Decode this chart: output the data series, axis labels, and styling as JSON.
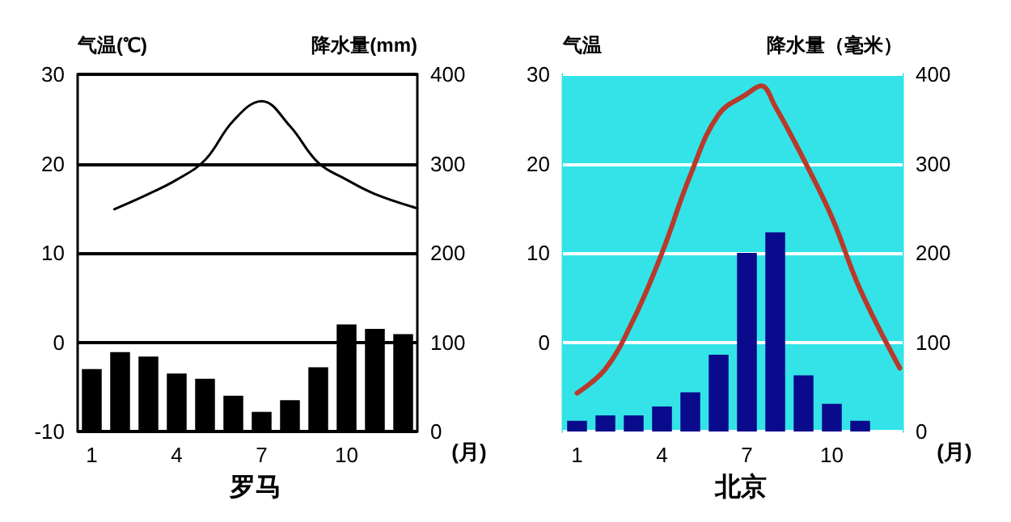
{
  "chart_data": [
    {
      "type": "bar",
      "title": "罗马",
      "ylabel": "气温(℃)",
      "y2label": "降水量(mm)",
      "xlabel": "(月)",
      "xlim": [
        0.5,
        12.5
      ],
      "xticks": [
        1,
        4,
        7,
        10
      ],
      "ylim": [
        -10,
        30
      ],
      "yticks": [
        -10,
        0,
        10,
        20,
        30
      ],
      "y2lim": [
        0,
        400
      ],
      "y2ticks": [
        0,
        100,
        200,
        300,
        400
      ],
      "grid": "y",
      "marker": "none",
      "line_style": "solid",
      "series": [
        {
          "axis": "y2",
          "color": "#000000",
          "x": [
            1,
            2,
            3,
            4,
            5,
            6,
            7,
            8,
            9,
            10,
            11,
            12
          ],
          "values": [
            70,
            89,
            84,
            65,
            59,
            40,
            22,
            35,
            72,
            120,
            115,
            109
          ]
        },
        {
          "type": "line",
          "axis": "y",
          "color": "#000000",
          "x": [
            1.8,
            3,
            4,
            5,
            6,
            7,
            8,
            9,
            10,
            11,
            12.5
          ],
          "values": [
            14.9,
            16.6,
            18.2,
            20.4,
            24.8,
            27,
            24.2,
            20.1,
            18.2,
            16.6,
            15
          ]
        }
      ]
    },
    {
      "type": "bar",
      "title": "北京",
      "ylabel": "气温",
      "y2label": "降水量（毫米）",
      "xlabel": "(月)",
      "xlim": [
        0.5,
        12.5
      ],
      "xticks": [
        1,
        4,
        7,
        10
      ],
      "ylim": [
        -10,
        30
      ],
      "yticks": [
        {
          "value": -10,
          "label": null
        },
        0,
        10,
        20,
        30
      ],
      "y2lim": [
        0,
        400
      ],
      "y2ticks": [
        0,
        100,
        200,
        300,
        400
      ],
      "grid": "y",
      "marker": "none",
      "line_style": "solid",
      "series": [
        {
          "axis": "y2",
          "color": "#0a0a8c",
          "x": [
            1,
            2,
            3,
            4,
            5,
            6,
            7,
            8,
            9,
            10,
            11,
            12
          ],
          "values": [
            12,
            18,
            18,
            28,
            44,
            86,
            200,
            223,
            63,
            31,
            12,
            0
          ]
        },
        {
          "type": "line",
          "axis": "y",
          "color": "#b83a2a",
          "x": [
            1,
            2,
            3,
            4,
            5,
            6,
            7,
            7.5,
            8,
            9,
            10,
            11,
            12.4
          ],
          "values": [
            -5.7,
            -3,
            2.6,
            10,
            18.7,
            25.5,
            27.8,
            28.7,
            26.4,
            20.5,
            14,
            5.9,
            -2.9
          ]
        }
      ]
    }
  ]
}
